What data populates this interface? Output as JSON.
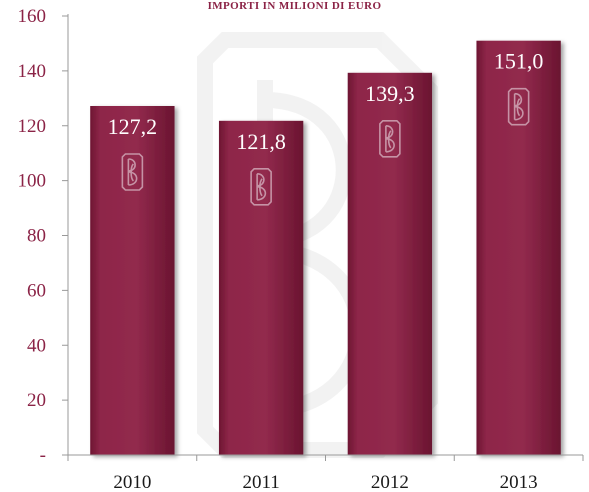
{
  "chart_data": {
    "type": "bar",
    "subtitle": "IMPORTI IN MILIONI DI EURO",
    "categories": [
      "2010",
      "2011",
      "2012",
      "2013"
    ],
    "values": [
      127.2,
      121.8,
      139.3,
      151.0
    ],
    "data_labels": [
      "127,2",
      "121,8",
      "139,3",
      "151,0"
    ],
    "ylim": [
      0,
      160
    ],
    "yticks": [
      0,
      20,
      40,
      60,
      80,
      100,
      120,
      140,
      160
    ],
    "ytick_labels": [
      "-",
      "20",
      "40",
      "60",
      "80",
      "100",
      "120",
      "140",
      "160"
    ],
    "bar_color": "#8b2346",
    "axis_label_color": "#8b2346",
    "grid": false,
    "legend": "none",
    "watermark_icon": "bpc-monogram-logo"
  }
}
